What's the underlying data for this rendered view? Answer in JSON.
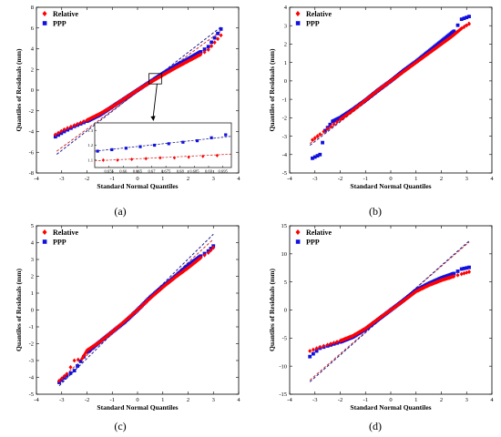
{
  "colors": {
    "relative": "#ff0000",
    "ppp": "#1010e0",
    "relative_ref": "#d03030",
    "ppp_ref": "#202090"
  },
  "legend": {
    "relative": "Relative",
    "ppp": "PPP"
  },
  "chart_data": [
    {
      "id": "a",
      "panel_label": "(a)",
      "type": "scatter",
      "xlabel": "Standard Normal Quantiles",
      "ylabel": "Quantiles of Residuals (mm)",
      "xlim": [
        -4,
        4
      ],
      "ylim": [
        -8,
        8
      ],
      "xticks": [
        -4,
        -3,
        -2,
        -1,
        0,
        1,
        2,
        3,
        4
      ],
      "yticks": [
        -8,
        -6,
        -4,
        -2,
        0,
        2,
        4,
        6,
        8
      ],
      "series": [
        {
          "name": "Relative",
          "slope": 1.55,
          "intercept": 0.0,
          "ref_line": [
            [
              -3.2,
              -5.9
            ],
            [
              3.3,
              5.7
            ]
          ],
          "qq_points": [
            [
              -3.25,
              -4.3
            ],
            [
              -2.9,
              -3.8
            ],
            [
              -2.5,
              -3.4
            ],
            [
              -2.0,
              -2.9
            ],
            [
              -1.5,
              -2.3
            ],
            [
              -1.0,
              -1.6
            ],
            [
              -0.5,
              -0.8
            ],
            [
              0.0,
              0.0
            ],
            [
              0.5,
              0.75
            ],
            [
              1.0,
              1.45
            ],
            [
              1.5,
              2.15
            ],
            [
              2.0,
              2.8
            ],
            [
              2.5,
              3.45
            ],
            [
              2.8,
              3.9
            ],
            [
              3.3,
              5.3
            ]
          ]
        },
        {
          "name": "PPP",
          "slope": 1.6,
          "intercept": 0.0,
          "ref_line": [
            [
              -3.2,
              -6.2
            ],
            [
              3.3,
              6.1
            ]
          ],
          "qq_points": [
            [
              -3.25,
              -4.5
            ],
            [
              -2.9,
              -4.0
            ],
            [
              -2.5,
              -3.5
            ],
            [
              -2.0,
              -3.0
            ],
            [
              -1.5,
              -2.4
            ],
            [
              -1.0,
              -1.6
            ],
            [
              -0.5,
              -0.8
            ],
            [
              0.0,
              0.0
            ],
            [
              0.5,
              0.8
            ],
            [
              1.0,
              1.6
            ],
            [
              1.5,
              2.35
            ],
            [
              2.0,
              3.0
            ],
            [
              2.5,
              3.7
            ],
            [
              2.8,
              4.2
            ],
            [
              3.3,
              5.9
            ]
          ]
        }
      ],
      "inset": {
        "xlim": [
          0.65,
          0.698
        ],
        "ylim": [
          1.05,
          1.35
        ],
        "xticks": [
          0.655,
          0.66,
          0.665,
          0.67,
          0.675,
          0.68,
          0.685,
          0.69,
          0.695
        ],
        "yticks": [
          1.1,
          1.2,
          1.3
        ],
        "series": [
          {
            "name": "Relative",
            "ref_line": [
              [
                0.65,
                1.095
              ],
              [
                0.698,
                1.14
              ]
            ],
            "points": [
              [
                0.653,
                1.1
              ],
              [
                0.658,
                1.1
              ],
              [
                0.663,
                1.105
              ],
              [
                0.668,
                1.11
              ],
              [
                0.673,
                1.115
              ],
              [
                0.678,
                1.115
              ],
              [
                0.683,
                1.12
              ],
              [
                0.688,
                1.125
              ],
              [
                0.693,
                1.13
              ]
            ]
          },
          {
            "name": "PPP",
            "ref_line": [
              [
                0.65,
                1.16
              ],
              [
                0.698,
                1.26
              ]
            ],
            "points": [
              [
                0.651,
                1.16
              ],
              [
                0.656,
                1.17
              ],
              [
                0.661,
                1.18
              ],
              [
                0.666,
                1.19
              ],
              [
                0.671,
                1.2
              ],
              [
                0.676,
                1.21
              ],
              [
                0.681,
                1.22
              ],
              [
                0.686,
                1.23
              ],
              [
                0.691,
                1.25
              ],
              [
                0.696,
                1.27
              ]
            ]
          }
        ]
      }
    },
    {
      "id": "b",
      "panel_label": "(b)",
      "type": "scatter",
      "xlabel": "Standard Normal Quantiles",
      "ylabel": "Quantiles of Residuals (mm)",
      "xlim": [
        -4,
        4
      ],
      "ylim": [
        -5,
        4
      ],
      "xticks": [
        -4,
        -3,
        -2,
        -1,
        0,
        1,
        2,
        3,
        4
      ],
      "yticks": [
        -5,
        -4,
        -3,
        -2,
        -1,
        0,
        1,
        2,
        3,
        4
      ],
      "series": [
        {
          "name": "Relative",
          "slope": 1.0,
          "intercept": 0.0,
          "ref_line": [
            [
              -3.2,
              -3.4
            ],
            [
              3.1,
              3.1
            ]
          ],
          "qq_points": [
            [
              -3.1,
              -3.2
            ],
            [
              -2.8,
              -2.9
            ],
            [
              -2.5,
              -2.6
            ],
            [
              -2.0,
              -2.1
            ],
            [
              -1.5,
              -1.6
            ],
            [
              -1.0,
              -1.05
            ],
            [
              -0.5,
              -0.5
            ],
            [
              0.0,
              0.0
            ],
            [
              0.5,
              0.5
            ],
            [
              1.0,
              1.0
            ],
            [
              1.5,
              1.5
            ],
            [
              2.0,
              2.0
            ],
            [
              2.4,
              2.4
            ],
            [
              2.8,
              2.85
            ],
            [
              3.1,
              3.1
            ]
          ]
        },
        {
          "name": "PPP",
          "slope": 1.05,
          "intercept": 0.0,
          "ref_line": [
            [
              -3.2,
              -3.5
            ],
            [
              3.1,
              3.2
            ]
          ],
          "qq_points": [
            [
              -3.1,
              -4.2
            ],
            [
              -2.8,
              -4.0
            ],
            [
              -2.6,
              -2.7
            ],
            [
              -2.3,
              -2.2
            ],
            [
              -2.0,
              -2.0
            ],
            [
              -1.5,
              -1.55
            ],
            [
              -1.0,
              -1.05
            ],
            [
              -0.5,
              -0.5
            ],
            [
              0.0,
              0.0
            ],
            [
              0.5,
              0.55
            ],
            [
              1.0,
              1.05
            ],
            [
              1.5,
              1.6
            ],
            [
              2.0,
              2.15
            ],
            [
              2.5,
              2.7
            ],
            [
              2.8,
              3.35
            ],
            [
              3.1,
              3.5
            ]
          ]
        }
      ]
    },
    {
      "id": "c",
      "panel_label": "(c)",
      "type": "scatter",
      "xlabel": "Standard Normal Quantiles",
      "ylabel": "Quantiles of Residuals (mm)",
      "xlim": [
        -4,
        4
      ],
      "ylim": [
        -5,
        5
      ],
      "xticks": [
        -4,
        -3,
        -2,
        -1,
        0,
        1,
        2,
        3,
        4
      ],
      "yticks": [
        -5,
        -4,
        -3,
        -2,
        -1,
        0,
        1,
        2,
        3,
        4,
        5
      ],
      "series": [
        {
          "name": "Relative",
          "slope": 1.4,
          "intercept": 0.0,
          "ref_line": [
            [
              -3.1,
              -4.2
            ],
            [
              3.0,
              4.2
            ]
          ],
          "qq_points": [
            [
              -3.1,
              -4.2
            ],
            [
              -2.8,
              -3.8
            ],
            [
              -2.5,
              -3.0
            ],
            [
              -2.2,
              -2.9
            ],
            [
              -2.0,
              -2.4
            ],
            [
              -1.5,
              -1.9
            ],
            [
              -1.0,
              -1.3
            ],
            [
              -0.5,
              -0.65
            ],
            [
              0.0,
              0.0
            ],
            [
              0.5,
              0.7
            ],
            [
              1.0,
              1.35
            ],
            [
              1.5,
              1.95
            ],
            [
              2.0,
              2.5
            ],
            [
              2.5,
              3.1
            ],
            [
              2.8,
              3.4
            ],
            [
              3.0,
              3.7
            ]
          ]
        },
        {
          "name": "PPP",
          "slope": 1.45,
          "intercept": 0.0,
          "ref_line": [
            [
              -3.1,
              -4.5
            ],
            [
              3.0,
              4.5
            ]
          ],
          "qq_points": [
            [
              -3.1,
              -4.3
            ],
            [
              -2.8,
              -3.9
            ],
            [
              -2.5,
              -3.6
            ],
            [
              -2.0,
              -2.5
            ],
            [
              -1.5,
              -1.9
            ],
            [
              -1.0,
              -1.3
            ],
            [
              -0.5,
              -0.7
            ],
            [
              0.0,
              0.0
            ],
            [
              0.5,
              0.75
            ],
            [
              1.0,
              1.4
            ],
            [
              1.5,
              2.0
            ],
            [
              2.0,
              2.65
            ],
            [
              2.5,
              3.2
            ],
            [
              2.8,
              3.5
            ],
            [
              3.0,
              3.8
            ]
          ]
        }
      ]
    },
    {
      "id": "d",
      "panel_label": "(d)",
      "type": "scatter",
      "xlabel": "Standard Normal Quantiles",
      "ylabel": "Quantiles of Residuals (mm)",
      "xlim": [
        -4,
        4
      ],
      "ylim": [
        -15,
        15
      ],
      "xticks": [
        -4,
        -3,
        -2,
        -1,
        0,
        1,
        2,
        3,
        4
      ],
      "yticks": [
        -15,
        -10,
        -5,
        0,
        5,
        10,
        15
      ],
      "series": [
        {
          "name": "Relative",
          "slope": 3.9,
          "intercept": 0.0,
          "ref_line": [
            [
              -3.2,
              -12.5
            ],
            [
              3.1,
              12.1
            ]
          ],
          "qq_points": [
            [
              -3.2,
              -7.3
            ],
            [
              -2.8,
              -6.6
            ],
            [
              -2.5,
              -6.2
            ],
            [
              -2.0,
              -5.5
            ],
            [
              -1.5,
              -4.6
            ],
            [
              -1.0,
              -3.3
            ],
            [
              -0.5,
              -1.6
            ],
            [
              0.0,
              0.0
            ],
            [
              0.5,
              1.6
            ],
            [
              1.0,
              3.3
            ],
            [
              1.5,
              4.4
            ],
            [
              2.0,
              5.3
            ],
            [
              2.5,
              6.0
            ],
            [
              2.8,
              6.4
            ],
            [
              3.1,
              6.8
            ]
          ]
        },
        {
          "name": "PPP",
          "slope": 3.95,
          "intercept": 0.0,
          "ref_line": [
            [
              -3.2,
              -12.8
            ],
            [
              3.1,
              12.3
            ]
          ],
          "qq_points": [
            [
              -3.2,
              -8.3
            ],
            [
              -2.8,
              -6.8
            ],
            [
              -2.5,
              -6.4
            ],
            [
              -2.0,
              -5.7
            ],
            [
              -1.5,
              -4.8
            ],
            [
              -1.0,
              -3.4
            ],
            [
              -0.5,
              -1.7
            ],
            [
              0.0,
              0.0
            ],
            [
              0.5,
              1.7
            ],
            [
              1.0,
              3.5
            ],
            [
              1.5,
              4.7
            ],
            [
              2.0,
              5.7
            ],
            [
              2.5,
              6.5
            ],
            [
              2.8,
              7.3
            ],
            [
              3.1,
              7.6
            ]
          ]
        }
      ]
    }
  ]
}
